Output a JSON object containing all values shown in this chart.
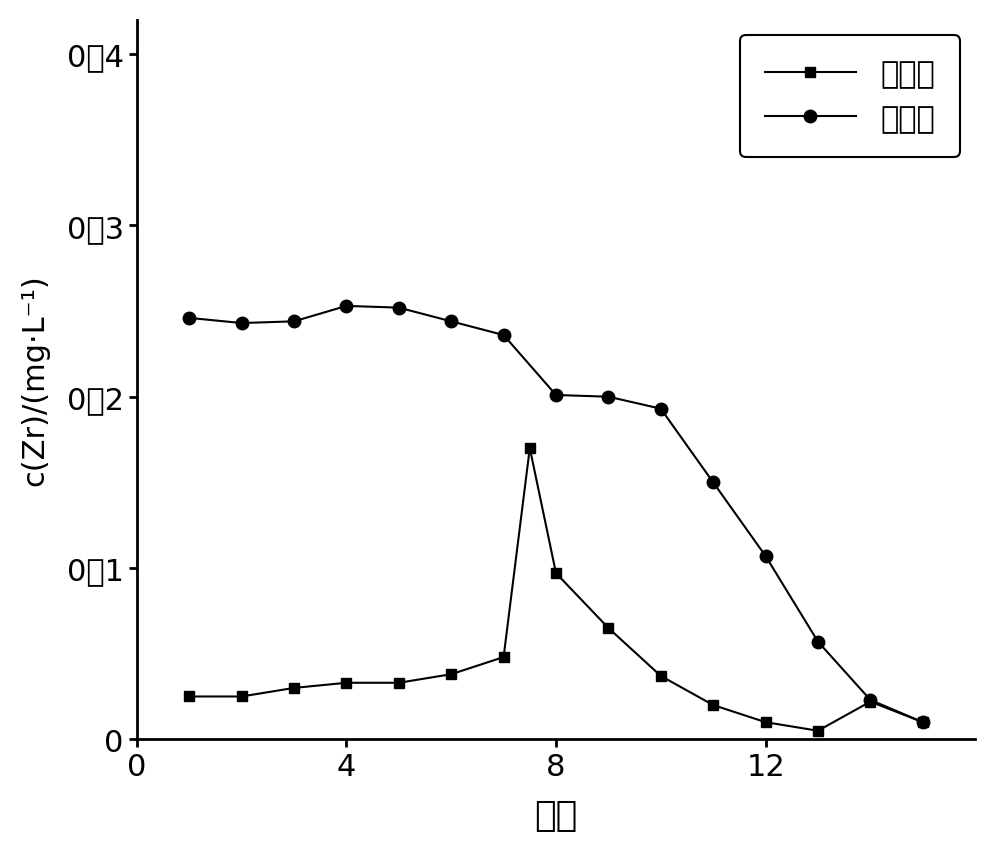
{
  "organic_x": [
    1,
    2,
    3,
    4,
    5,
    6,
    7,
    7.5,
    8,
    9,
    10,
    11,
    12,
    13,
    14,
    15
  ],
  "organic_y": [
    0.025,
    0.025,
    0.03,
    0.033,
    0.033,
    0.038,
    0.048,
    0.17,
    0.097,
    0.065,
    0.037,
    0.02,
    0.01,
    0.005,
    0.022,
    0.01
  ],
  "water_x": [
    1,
    2,
    3,
    4,
    5,
    6,
    7,
    8,
    9,
    10,
    11,
    12,
    13,
    14,
    15
  ],
  "water_y": [
    0.246,
    0.243,
    0.244,
    0.253,
    0.252,
    0.244,
    0.236,
    0.201,
    0.2,
    0.193,
    0.15,
    0.107,
    0.057,
    0.023,
    0.01
  ],
  "xlabel": "级数",
  "legend_organic": "有机相",
  "legend_water": "水　相",
  "xlim": [
    0,
    16
  ],
  "ylim": [
    0,
    0.42
  ],
  "ytick_vals": [
    0.0,
    0.1,
    0.2,
    0.3,
    0.4
  ],
  "ytick_labels": [
    "0",
    "0．1",
    "0．2",
    "0．3",
    "0．4"
  ],
  "xtick_vals": [
    0,
    4,
    8,
    12
  ],
  "xtick_labels": [
    "0",
    "4",
    "8",
    "12"
  ],
  "background_color": "#ffffff",
  "line_color": "#000000"
}
